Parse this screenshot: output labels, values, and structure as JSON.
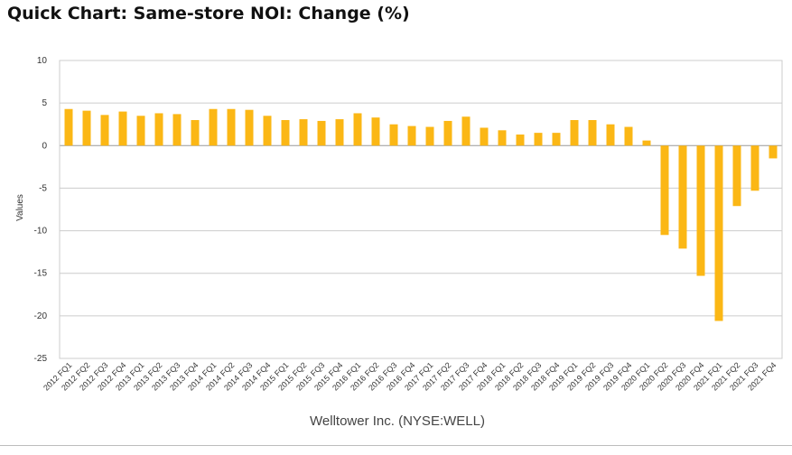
{
  "page_title": "Quick Chart: Same-store NOI: Change (%)",
  "chart_data": {
    "type": "bar",
    "title": "Quick Chart: Same-store NOI: Change (%)",
    "xlabel": "Welltower Inc. (NYSE:WELL)",
    "ylabel": "Values",
    "ylim": [
      -25,
      10
    ],
    "yticks": [
      10,
      5,
      0,
      -5,
      -10,
      -15,
      -20,
      -25
    ],
    "grid": true,
    "bar_color": "#FBB715",
    "categories": [
      "2012 FQ1",
      "2012 FQ2",
      "2012 FQ3",
      "2012 FQ4",
      "2013 FQ1",
      "2013 FQ2",
      "2013 FQ3",
      "2013 FQ4",
      "2014 FQ1",
      "2014 FQ2",
      "2014 FQ3",
      "2014 FQ4",
      "2015 FQ1",
      "2015 FQ2",
      "2015 FQ3",
      "2015 FQ4",
      "2016 FQ1",
      "2016 FQ2",
      "2016 FQ3",
      "2016 FQ4",
      "2017 FQ1",
      "2017 FQ2",
      "2017 FQ3",
      "2017 FQ4",
      "2018 FQ1",
      "2018 FQ2",
      "2018 FQ3",
      "2018 FQ4",
      "2019 FQ1",
      "2019 FQ2",
      "2019 FQ3",
      "2019 FQ4",
      "2020 FQ1",
      "2020 FQ2",
      "2020 FQ3",
      "2020 FQ4",
      "2021 FQ1",
      "2021 FQ2",
      "2021 FQ3",
      "2021 FQ4"
    ],
    "values": [
      4.3,
      4.1,
      3.6,
      4.0,
      3.5,
      3.8,
      3.7,
      3.0,
      4.3,
      4.3,
      4.2,
      3.5,
      3.0,
      3.1,
      2.9,
      3.1,
      3.8,
      3.3,
      2.5,
      2.3,
      2.2,
      2.9,
      3.4,
      2.1,
      1.8,
      1.3,
      1.5,
      1.5,
      3.0,
      3.0,
      2.5,
      2.2,
      0.6,
      -10.5,
      -12.1,
      -15.3,
      -20.6,
      -7.1,
      -5.3,
      -1.5
    ]
  }
}
